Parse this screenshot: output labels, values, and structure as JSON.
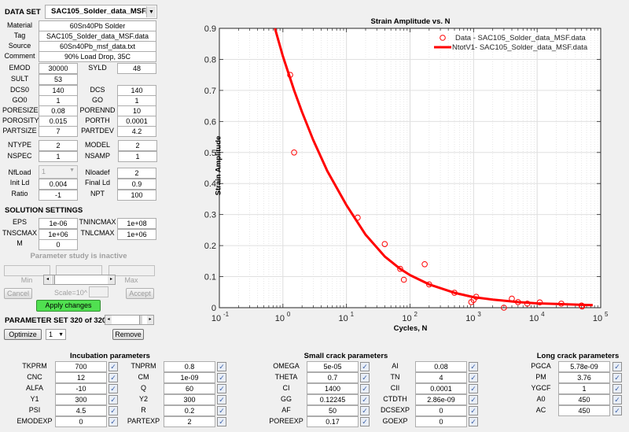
{
  "dataset": {
    "label": "DATA SET",
    "selected": "SAC105_Solder_data_MSF....",
    "material_label": "Material",
    "material": "60Sn40Pb Solder",
    "tag_label": "Tag",
    "tag": "SAC105_Solder_data_MSF.data",
    "source_label": "Source",
    "source": "60Sn40Pb_msf_data.txt",
    "comment_label": "Comment",
    "comment": "90% Load Drop, 35C"
  },
  "props": [
    {
      "l1": "EMOD",
      "v1": "30000",
      "l2": "SYLD",
      "v2": "48"
    },
    {
      "l1": "SULT",
      "v1": "53",
      "l2": "",
      "v2": null
    },
    {
      "l1": "DCS0",
      "v1": "140",
      "l2": "DCS",
      "v2": "140"
    },
    {
      "l1": "GO0",
      "v1": "1",
      "l2": "GO",
      "v2": "1"
    },
    {
      "l1": "PORESIZE",
      "v1": "0.08",
      "l2": "PORENND",
      "v2": "10"
    },
    {
      "l1": "POROSITY",
      "v1": "0.015",
      "l2": "PORTH",
      "v2": "0.0001"
    },
    {
      "l1": "PARTSIZE",
      "v1": "7",
      "l2": "PARTDEV",
      "v2": "4.2"
    }
  ],
  "types": [
    {
      "l1": "NTYPE",
      "v1": "2",
      "l2": "MODEL",
      "v2": "2"
    },
    {
      "l1": "NSPEC",
      "v1": "1",
      "l2": "NSAMP",
      "v2": "1"
    }
  ],
  "loads": {
    "nfload_label": "NfLoad",
    "nfload_value": "1",
    "nloadef_label": "Nloadef",
    "nloadef_value": "2",
    "initld_label": "Init Ld",
    "initld_value": "0.004",
    "finalld_label": "Final Ld",
    "finalld_value": "0.9",
    "ratio_label": "Ratio",
    "ratio_value": "-1",
    "npt_label": "NPT",
    "npt_value": "100"
  },
  "solution": {
    "title": "SOLUTION SETTINGS",
    "eps_label": "EPS",
    "eps": "1e-06",
    "tnincmax_label": "TNINCMAX",
    "tnincmax": "1e+08",
    "tnscmax_label": "TNSCMAX",
    "tnscmax": "1e+06",
    "tnlcmax_label": "TNLCMAX",
    "tnlcmax": "1e+06",
    "m_label": "M",
    "m": "0"
  },
  "param_study": {
    "status": "Parameter study is inactive",
    "min_label": "Min",
    "max_label": "Max",
    "cancel": "Cancel",
    "scale_label": "Scale=10^",
    "accept": "Accept",
    "apply": "Apply changes",
    "set_label": "PARAMETER SET 320 of 320",
    "optimize": "Optimize",
    "opt_select": "1",
    "remove": "Remove"
  },
  "incubation": {
    "title": "Incubation parameters",
    "rows": [
      {
        "l1": "TKPRM",
        "v1": "700",
        "l2": "TNPRM",
        "v2": "0.8"
      },
      {
        "l1": "CNC",
        "v1": "12",
        "l2": "CM",
        "v2": "1e-09"
      },
      {
        "l1": "ALFA",
        "v1": "-10",
        "l2": "Q",
        "v2": "60"
      },
      {
        "l1": "Y1",
        "v1": "300",
        "l2": "Y2",
        "v2": "300"
      },
      {
        "l1": "PSI",
        "v1": "4.5",
        "l2": "R",
        "v2": "0.2"
      },
      {
        "l1": "EMODEXP",
        "v1": "0",
        "l2": "PARTEXP",
        "v2": "2"
      }
    ]
  },
  "small_crack": {
    "title": "Small crack parameters",
    "rows": [
      {
        "l1": "OMEGA",
        "v1": "5e-05",
        "l2": "AI",
        "v2": "0.08"
      },
      {
        "l1": "THETA",
        "v1": "0.7",
        "l2": "TN",
        "v2": "4"
      },
      {
        "l1": "CI",
        "v1": "1400",
        "l2": "CII",
        "v2": "0.0001"
      },
      {
        "l1": "GG",
        "v1": "0.12245",
        "l2": "CTDTH",
        "v2": "2.86e-09"
      },
      {
        "l1": "AF",
        "v1": "50",
        "l2": "DCSEXP",
        "v2": "0"
      },
      {
        "l1": "POREEXP",
        "v1": "0.17",
        "l2": "GOEXP",
        "v2": "0"
      }
    ]
  },
  "long_crack": {
    "title": "Long crack parameters",
    "rows": [
      {
        "l": "PGCA",
        "v": "5.78e-09"
      },
      {
        "l": "PM",
        "v": "3.76"
      },
      {
        "l": "YGCF",
        "v": "1"
      },
      {
        "l": "A0",
        "v": "450"
      },
      {
        "l": "AC",
        "v": "450"
      }
    ]
  },
  "check_glyph": "✓",
  "chart_data": {
    "type": "scatter",
    "title": "Strain Amplitude vs. N",
    "xlabel": "Cycles, N",
    "ylabel": "Strain Amplitude",
    "xscale": "log",
    "xlim": [
      0.1,
      100000
    ],
    "ylim": [
      0,
      0.9
    ],
    "xticks": [
      "10^-1",
      "10^0",
      "10^1",
      "10^2",
      "10^3",
      "10^4",
      "10^5"
    ],
    "yticks": [
      "0",
      "0.1",
      "0.2",
      "0.3",
      "0.4",
      "0.5",
      "0.6",
      "0.7",
      "0.8",
      "0.9"
    ],
    "grid": true,
    "legend_position": "northeast",
    "series": [
      {
        "name": "Data -  SAC105_Solder_data_MSF.data",
        "style": "markers-circle",
        "color": "#ff0000",
        "x": [
          1.3,
          1.5,
          15,
          40,
          70,
          80,
          170,
          200,
          500,
          920,
          1000,
          1100,
          3000,
          4000,
          5000,
          7000,
          11000,
          24000,
          50000,
          51000
        ],
        "y": [
          0.75,
          0.5,
          0.29,
          0.205,
          0.125,
          0.09,
          0.14,
          0.075,
          0.048,
          0.018,
          0.025,
          0.035,
          0.0,
          0.029,
          0.018,
          0.013,
          0.017,
          0.013,
          0.007,
          0.004
        ]
      },
      {
        "name": "NtotV1-  SAC105_Solder_data_MSF.data",
        "style": "line",
        "color": "#ff0000",
        "x": [
          0.75,
          1,
          1.5,
          2,
          3,
          5,
          10,
          20,
          40,
          70,
          100,
          200,
          500,
          1000,
          2000,
          5000,
          10000,
          20000,
          50000,
          75000
        ],
        "y": [
          0.9,
          0.81,
          0.7,
          0.63,
          0.54,
          0.44,
          0.33,
          0.235,
          0.165,
          0.125,
          0.105,
          0.075,
          0.048,
          0.034,
          0.026,
          0.018,
          0.014,
          0.012,
          0.009,
          0.008
        ]
      }
    ]
  }
}
